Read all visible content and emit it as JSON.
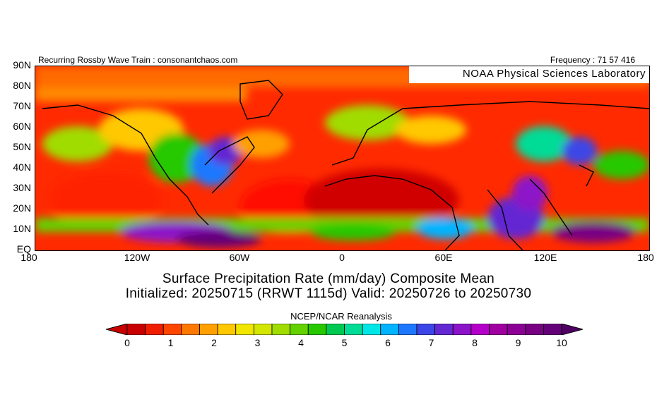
{
  "header": {
    "left_text": "Recurring Rossby Wave Train : consonantchaos.com",
    "right_text": "Frequency : 71 57 416"
  },
  "map": {
    "lab_label": "NOAA Physical Sciences Laboratory",
    "lat_labels": [
      "90N",
      "80N",
      "70N",
      "60N",
      "50N",
      "40N",
      "30N",
      "20N",
      "10N",
      "EQ"
    ],
    "lon_labels": [
      "180",
      "120W",
      "60W",
      "0",
      "60E",
      "120E",
      "180"
    ]
  },
  "titles": {
    "line1": "Surface Precipitation Rate (mm/day) Composite Mean",
    "line2": "Initialized: 20250715 (RRWT 1115d) Valid: 20250726 to 20250730"
  },
  "colorbar": {
    "label": "NCEP/NCAR Reanalysis",
    "tick_labels": [
      "0",
      "1",
      "2",
      "3",
      "4",
      "5",
      "6",
      "7",
      "8",
      "9",
      "10"
    ],
    "colors": [
      "#c80000",
      "#f01e00",
      "#ff4600",
      "#ff7800",
      "#ffa000",
      "#ffc800",
      "#f0e600",
      "#d2e600",
      "#a0dc00",
      "#64d200",
      "#28c800",
      "#00c850",
      "#00dc96",
      "#00e6e6",
      "#00b4ff",
      "#1e78ff",
      "#3c46e6",
      "#6428d2",
      "#8c14c8",
      "#b400c8",
      "#a000a0",
      "#8c0096",
      "#780082",
      "#640078"
    ],
    "low_color": "#c80000",
    "high_color": "#500064"
  }
}
